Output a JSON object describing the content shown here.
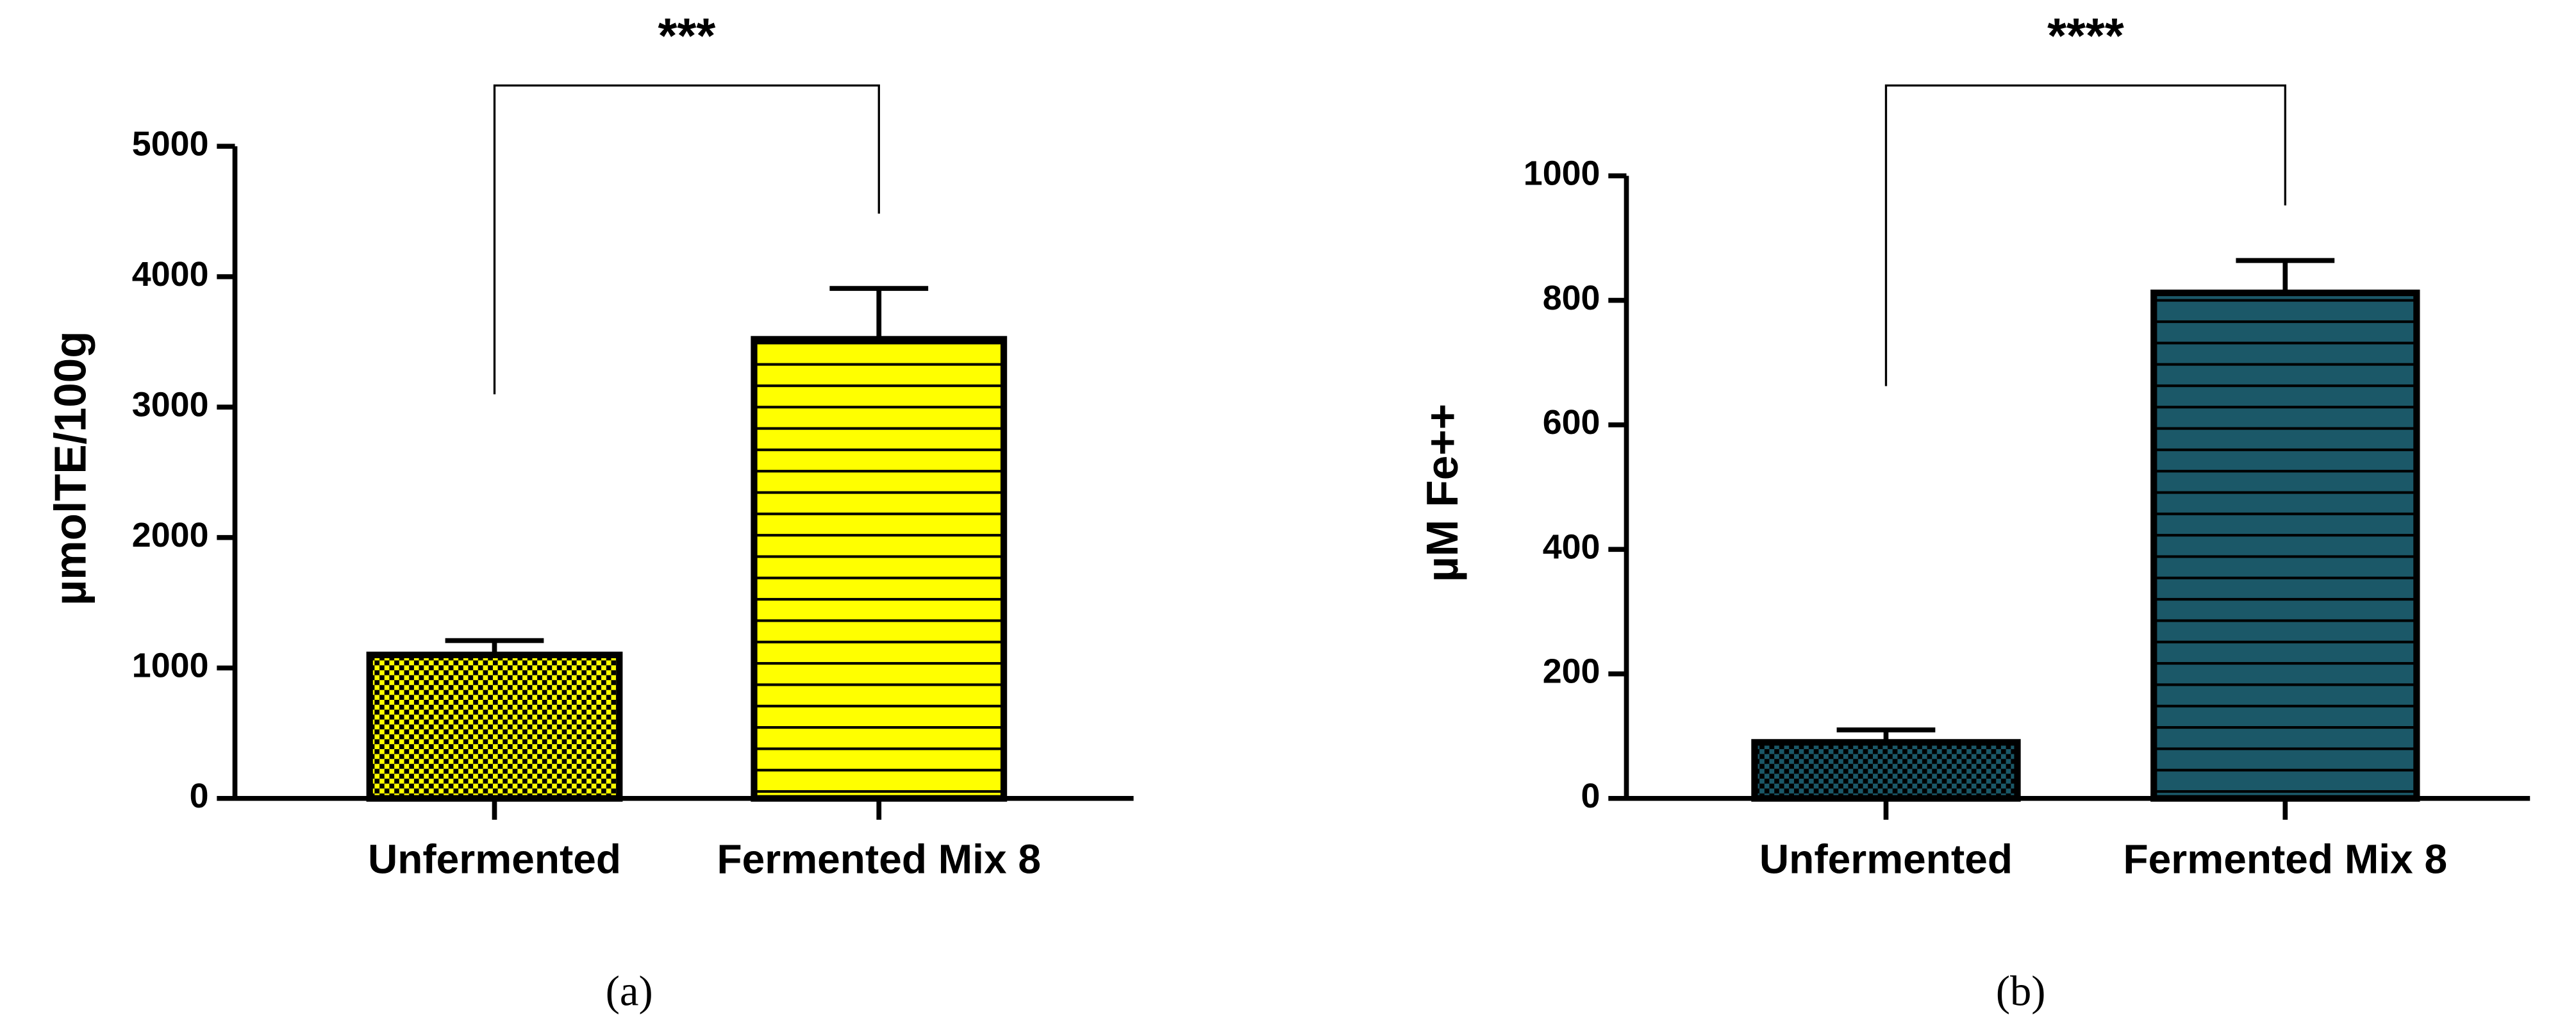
{
  "chart_data": [
    {
      "type": "bar",
      "y_label": "µmolTE/100g",
      "categories": [
        "Unfermented",
        "Fermented Mix 8"
      ],
      "values": [
        1100,
        3520
      ],
      "errors": [
        110,
        390
      ],
      "color": "#ffff00",
      "ylim": [
        0,
        5000
      ],
      "yticks": [
        0,
        1000,
        2000,
        3000,
        4000,
        5000
      ],
      "significance": "***",
      "caption": "(a)"
    },
    {
      "type": "bar",
      "y_label": "µM Fe++",
      "categories": [
        "Unfermented",
        "Fermented Mix 8"
      ],
      "values": [
        90,
        812
      ],
      "errors": [
        20,
        52
      ],
      "color": "#1b5868",
      "ylim": [
        0,
        1000
      ],
      "yticks": [
        0,
        200,
        400,
        600,
        800,
        1000
      ],
      "significance": "****",
      "caption": "(b)"
    }
  ]
}
